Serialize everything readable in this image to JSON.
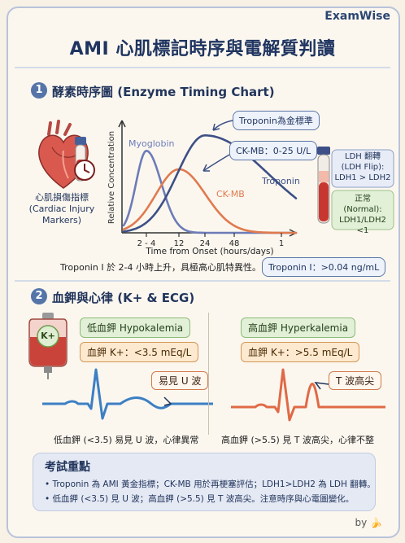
{
  "brand": "ExamWise",
  "title": "AMI 心肌標記時序與電解質判讀",
  "section1": {
    "number": "1",
    "heading": "酵素時序圖 (Enzyme Timing Chart)",
    "marker_label": "心肌損傷指標\n(Cardiac Injury\nMarkers)",
    "callout_troponin_gold": "Troponin為金標準",
    "callout_ckmb": "CK-MB：0-25 U/L",
    "ldh_flip_label": "LDH 翻轉\n(LDH Flip):\nLDH1 > LDH2",
    "ldh_normal_label": "正常\n(Normal):\nLDH1/LDH2 <1",
    "note_text": "Troponin I 於 2-4 小時上升，具極高心肌特異性。",
    "note_box": "Troponin I：>0.04 ng/mL"
  },
  "chart_data": {
    "type": "line",
    "title": "",
    "xlabel": "Time from Onset (hours/days)",
    "ylabel": "Relative Concentration",
    "x_ticks": [
      "2 - 4",
      "12",
      "24",
      "48",
      "1"
    ],
    "series": [
      {
        "name": "Myoglobin",
        "color": "#6d7bb8",
        "peak_tick": "2 - 4"
      },
      {
        "name": "CK-MB",
        "color": "#e07a4f",
        "peak_tick": "12"
      },
      {
        "name": "Troponin",
        "color": "#3d4f86",
        "peak_tick": "24"
      }
    ]
  },
  "section2": {
    "number": "2",
    "heading": "血鉀與心律 (K+ & ECG)",
    "bag_label": "K+",
    "hypo": {
      "title": "低血鉀 Hypokalemia",
      "value": "血鉀 K+：<3.5 mEq/L",
      "ecg_tag": "易見 U 波",
      "caption": "低血鉀 (<3.5) 易見 U 波，心律異常"
    },
    "hyper": {
      "title": "高血鉀 Hyperkalemia",
      "value": "血鉀 K+：>5.5 mEq/L",
      "ecg_tag": "T 波高尖",
      "caption": "高血鉀 (>5.5) 見 T 波高尖，心律不整"
    }
  },
  "summary": {
    "heading": "考試重點",
    "bullet1": "Troponin 為 AMI 黃金指標；CK-MB 用於再梗塞評估；LDH1>LDH2 為 LDH 翻轉。",
    "bullet2": "低血鉀 (<3.5) 見 U 波；高血鉀 (>5.5) 見 T 波高尖。注意時序與心電圖變化。"
  },
  "footer": "by",
  "colors": {
    "navy": "#22355c",
    "myoglobin": "#6d7bb8",
    "ckmb": "#e07a4f",
    "troponin": "#3d4f86",
    "ecg_hypo": "#3d7fc3",
    "ecg_hyper": "#e06a45"
  }
}
